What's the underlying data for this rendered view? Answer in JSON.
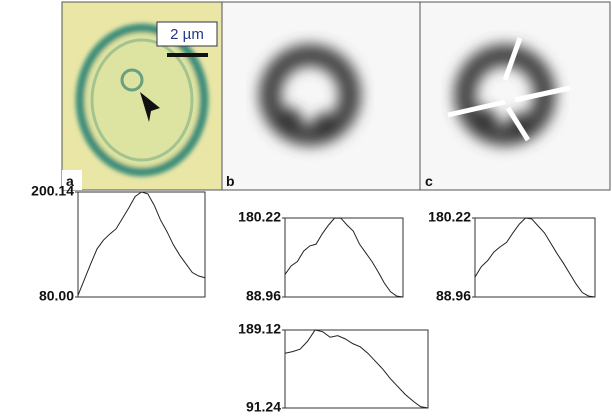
{
  "panels": [
    {
      "label": "a"
    },
    {
      "label": "b"
    },
    {
      "label": "c"
    }
  ],
  "scale_bar": "2 µm",
  "chart_data": [
    {
      "type": "line",
      "color": "#222222",
      "values": [
        82,
        100,
        118,
        135,
        145,
        152,
        158,
        170,
        182,
        195,
        200.14,
        198,
        185,
        168,
        155,
        140,
        128,
        118,
        108,
        104,
        102
      ],
      "ylim": [
        80,
        200.14
      ],
      "yticks": [
        {
          "value": 80,
          "label": "80.00"
        },
        {
          "value": 200.14,
          "label": "200.14"
        }
      ]
    },
    {
      "type": "line",
      "color": "#222222",
      "values": [
        115,
        125,
        130,
        142,
        148,
        150,
        162,
        172,
        180.22,
        180,
        172,
        165,
        150,
        140,
        130,
        118,
        105,
        95,
        90,
        89
      ],
      "ylim": [
        88.96,
        180.22
      ],
      "yticks": [
        {
          "value": 88.96,
          "label": "88.96"
        },
        {
          "value": 180.22,
          "label": "180.22"
        }
      ]
    },
    {
      "type": "line",
      "color": "#222222",
      "values": [
        112,
        124,
        131,
        141,
        147,
        152,
        163,
        173,
        180.22,
        179,
        171,
        163,
        151,
        139,
        128,
        116,
        104,
        94,
        90,
        89
      ],
      "ylim": [
        88.96,
        180.22
      ],
      "yticks": [
        {
          "value": 88.96,
          "label": "88.96"
        },
        {
          "value": 180.22,
          "label": "180.22"
        }
      ]
    },
    {
      "type": "line",
      "color": "#222222",
      "values": [
        160,
        162,
        165,
        175,
        189.12,
        187,
        180,
        182,
        178,
        172,
        168,
        160,
        150,
        140,
        128,
        118,
        108,
        100,
        93,
        91.24
      ],
      "ylim": [
        91.24,
        189.12
      ],
      "yticks": [
        {
          "value": 91.24,
          "label": "91.24"
        },
        {
          "value": 189.12,
          "label": "189.12"
        }
      ]
    }
  ]
}
